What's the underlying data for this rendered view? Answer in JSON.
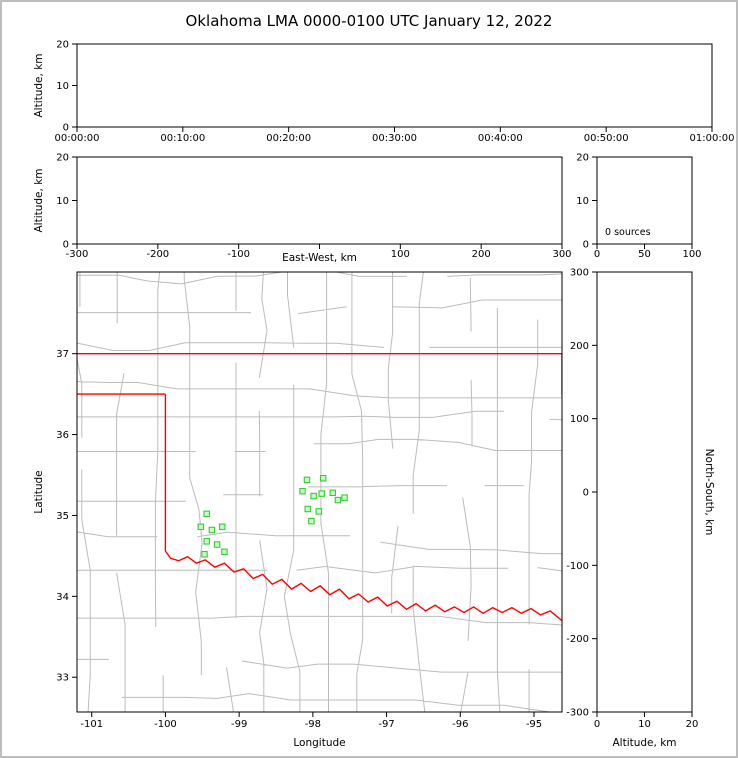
{
  "title": "Oklahoma LMA 0000-0100 UTC January 12, 2022",
  "colors": {
    "state_border": "#ff0000",
    "county_lines": "#bcbcbc",
    "station_fill": "#ccffcc",
    "station_edge": "#33cc33",
    "axis": "#000000",
    "figure_border": "#bdbdbd"
  },
  "chart_data": [
    {
      "type": "scatter",
      "panel": "time-height",
      "ylabel": "Altitude, km",
      "ylim": [
        0,
        20
      ],
      "yticks": [
        0,
        10,
        20
      ],
      "xticks": [
        "00:00:00",
        "00:10:00",
        "00:20:00",
        "00:30:00",
        "00:40:00",
        "00:50:00",
        "01:00:00"
      ],
      "points": []
    },
    {
      "type": "scatter",
      "panel": "eastwest-height",
      "xlabel": "East-West, km",
      "ylabel": "Altitude, km",
      "xlim": [
        -300,
        300
      ],
      "xticks": [
        -300,
        -200,
        -100,
        0,
        100,
        200,
        300
      ],
      "ylim": [
        0,
        20
      ],
      "yticks": [
        0,
        10,
        20
      ],
      "points": []
    },
    {
      "type": "histogram",
      "panel": "altitude-histogram",
      "annotation": "0 sources",
      "xlim": [
        0,
        100
      ],
      "xticks": [
        0,
        50,
        100
      ],
      "ylim": [
        0,
        20
      ],
      "yticks": [
        0,
        10,
        20
      ],
      "points": []
    },
    {
      "type": "map",
      "panel": "plan-view",
      "xlabel": "Longitude",
      "ylabel": "Latitude",
      "xlim": [
        -101.2,
        -94.62
      ],
      "xticks": [
        -101,
        -100,
        -99,
        -98,
        -97,
        -96,
        -95
      ],
      "ylim": [
        32.57,
        38.01
      ],
      "yticks": [
        33,
        34,
        35,
        36,
        37
      ],
      "stations": [
        [
          -98.08,
          35.44
        ],
        [
          -97.86,
          35.46
        ],
        [
          -98.14,
          35.3
        ],
        [
          -97.99,
          35.24
        ],
        [
          -97.88,
          35.27
        ],
        [
          -97.73,
          35.28
        ],
        [
          -98.07,
          35.08
        ],
        [
          -97.92,
          35.05
        ],
        [
          -98.02,
          34.93
        ],
        [
          -97.66,
          35.19
        ],
        [
          -97.57,
          35.22
        ],
        [
          -99.44,
          35.02
        ],
        [
          -99.52,
          34.86
        ],
        [
          -99.37,
          34.82
        ],
        [
          -99.23,
          34.86
        ],
        [
          -99.44,
          34.68
        ],
        [
          -99.3,
          34.64
        ],
        [
          -99.47,
          34.52
        ],
        [
          -99.2,
          34.55
        ]
      ],
      "state_border": {
        "north": [
          [
            -101.2,
            37.0
          ],
          [
            -94.62,
            37.0
          ]
        ],
        "panhandle_south": [
          [
            -101.2,
            36.5
          ],
          [
            -100.0,
            36.5
          ]
        ],
        "panhandle_east": [
          [
            -100.0,
            36.5
          ],
          [
            -100.0,
            34.56
          ]
        ],
        "northeast_edge": [
          [
            -94.62,
            37.0
          ],
          [
            -94.62,
            36.5
          ]
        ],
        "red_river": [
          [
            -100.0,
            34.56
          ],
          [
            -99.93,
            34.47
          ],
          [
            -99.82,
            34.44
          ],
          [
            -99.7,
            34.49
          ],
          [
            -99.58,
            34.41
          ],
          [
            -99.46,
            34.45
          ],
          [
            -99.33,
            34.36
          ],
          [
            -99.2,
            34.41
          ],
          [
            -99.07,
            34.3
          ],
          [
            -98.94,
            34.34
          ],
          [
            -98.81,
            34.22
          ],
          [
            -98.68,
            34.27
          ],
          [
            -98.55,
            34.15
          ],
          [
            -98.42,
            34.21
          ],
          [
            -98.29,
            34.09
          ],
          [
            -98.16,
            34.16
          ],
          [
            -98.03,
            34.06
          ],
          [
            -97.9,
            34.13
          ],
          [
            -97.77,
            34.02
          ],
          [
            -97.64,
            34.09
          ],
          [
            -97.51,
            33.97
          ],
          [
            -97.38,
            34.03
          ],
          [
            -97.25,
            33.93
          ],
          [
            -97.12,
            33.99
          ],
          [
            -96.99,
            33.88
          ],
          [
            -96.86,
            33.94
          ],
          [
            -96.73,
            33.84
          ],
          [
            -96.6,
            33.91
          ],
          [
            -96.47,
            33.82
          ],
          [
            -96.34,
            33.89
          ],
          [
            -96.21,
            33.81
          ],
          [
            -96.08,
            33.87
          ],
          [
            -95.95,
            33.8
          ],
          [
            -95.82,
            33.87
          ],
          [
            -95.69,
            33.79
          ],
          [
            -95.56,
            33.86
          ],
          [
            -95.43,
            33.8
          ],
          [
            -95.3,
            33.86
          ],
          [
            -95.17,
            33.79
          ],
          [
            -95.04,
            33.85
          ],
          [
            -94.91,
            33.77
          ],
          [
            -94.78,
            33.82
          ],
          [
            -94.62,
            33.7
          ]
        ]
      }
    },
    {
      "type": "scatter",
      "panel": "northsouth-height",
      "xlabel": "Altitude, km",
      "ylabel": "North-South, km",
      "xlim": [
        0,
        20
      ],
      "xticks": [
        0,
        10,
        20
      ],
      "ylim": [
        -300,
        300
      ],
      "yticks": [
        -300,
        -200,
        -100,
        0,
        100,
        200,
        300
      ],
      "points": []
    }
  ]
}
